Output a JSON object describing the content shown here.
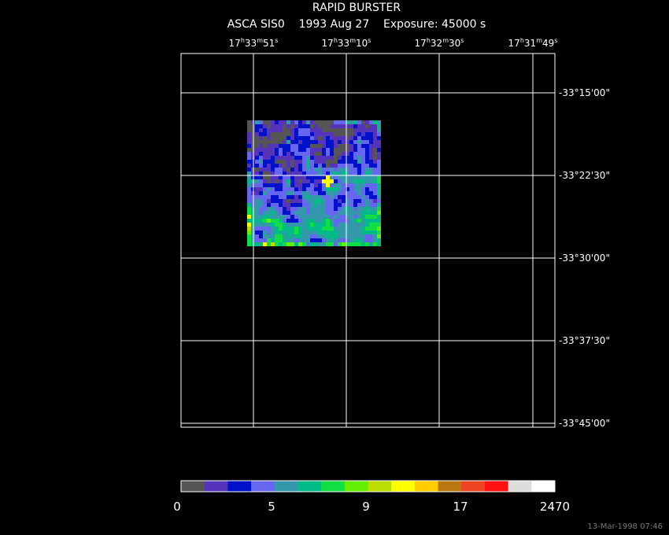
{
  "header": {
    "title": "RAPID BURSTER",
    "subtitle": "ASCA SIS0    1993 Aug 27    Exposure: 45000 s"
  },
  "ra_labels": [
    [
      "17",
      "h",
      "33",
      "m",
      "51",
      "s"
    ],
    [
      "17",
      "h",
      "33",
      "m",
      "10",
      "s"
    ],
    [
      "17",
      "h",
      "32",
      "m",
      "30",
      "s"
    ],
    [
      "17",
      "h",
      "31",
      "m",
      "49",
      "s"
    ]
  ],
  "dec_labels": [
    "-33°15'00\"",
    "-33°22'30\"",
    "-33°30'00\"",
    "-33°37'30\"",
    "-33°45'00\""
  ],
  "colorbar": {
    "colors": [
      "#555555",
      "#5533bb",
      "#0011cc",
      "#6666ee",
      "#3399aa",
      "#00bb88",
      "#11dd44",
      "#66ee00",
      "#bbdd00",
      "#ffff00",
      "#ffcc00",
      "#bb7711",
      "#ee4422",
      "#ff1111",
      "#dddddd",
      "#ffffff"
    ],
    "labels": [
      "0",
      "5",
      "9",
      "17",
      "2470"
    ]
  },
  "timestamp": "13-Mar-1998 07:46"
}
